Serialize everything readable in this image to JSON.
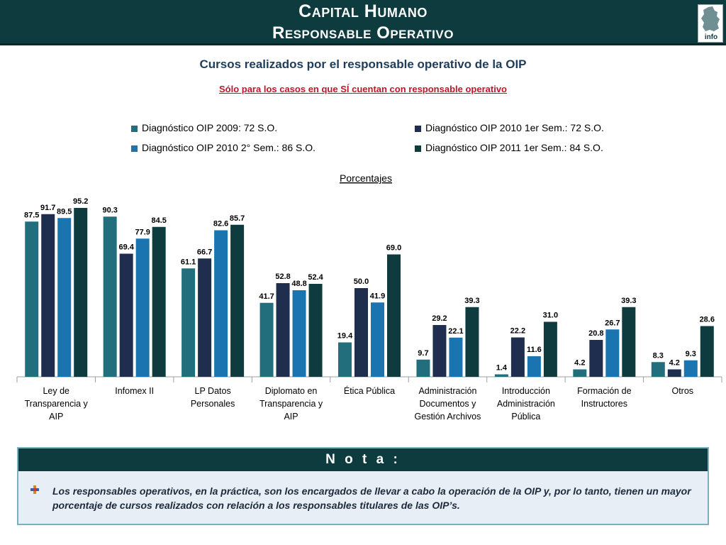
{
  "header": {
    "title": "Capital Humano",
    "subtitle": "Responsable Operativo",
    "logo_text": "info"
  },
  "chart_data": {
    "type": "bar",
    "title": "Cursos realizados por el responsable operativo de la OIP",
    "subtitle": "Sólo para los casos en que SÍ cuentan con responsable operativo",
    "ylabel": "Porcentajes",
    "ylim": [
      0,
      100
    ],
    "grid": false,
    "legend_position": "top",
    "categories": [
      "Ley de Transparencia y AIP",
      "Infomex II",
      "LP Datos Personales",
      "Diplomato en Transparencia y AIP",
      "Ética Pública",
      "Administración Documentos y Gestión Archivos",
      "Introducción Administración Pública",
      "Formación de Instructores",
      "Otros"
    ],
    "category_lines": [
      [
        "Ley de",
        "Transparencia y",
        "AIP"
      ],
      [
        "Infomex II"
      ],
      [
        "LP Datos",
        "Personales"
      ],
      [
        "Diplomato en",
        "Transparencia y",
        "AIP"
      ],
      [
        "Ética Pública"
      ],
      [
        "Administración",
        "Documentos y",
        "Gestión Archivos"
      ],
      [
        "Introducción",
        "Administración",
        "Pública"
      ],
      [
        "Formación de",
        "Instructores"
      ],
      [
        "Otros"
      ]
    ],
    "series": [
      {
        "name": "Diagnóstico OIP 2009: 72 S.O.",
        "color": "#236e7c",
        "values": [
          87.5,
          90.3,
          61.1,
          41.7,
          19.4,
          9.7,
          1.4,
          4.2,
          8.3
        ]
      },
      {
        "name": "Diagnóstico OIP 2010 1er Sem.: 72 S.O.",
        "color": "#1f2d4f",
        "values": [
          91.7,
          69.4,
          66.7,
          52.8,
          50.0,
          29.2,
          22.2,
          20.8,
          4.2
        ]
      },
      {
        "name": "Diagnóstico OIP 2010 2° Sem.: 86 S.O.",
        "color": "#1a74b0",
        "values": [
          89.5,
          77.9,
          82.6,
          48.8,
          41.9,
          22.1,
          11.6,
          26.7,
          9.3
        ]
      },
      {
        "name": "Diagnóstico OIP 2011 1er Sem.: 84 S.O.",
        "color": "#0d3b3e",
        "values": [
          95.2,
          84.5,
          85.7,
          52.4,
          69.0,
          39.3,
          31.0,
          39.3,
          28.6
        ]
      }
    ]
  },
  "nota": {
    "title": "N o t a :",
    "text": "Los responsables operativos, en la práctica, son los encargados de llevar a cabo la operación de la OIP y, por lo tanto, tienen un mayor porcentaje de cursos realizados con relación a los responsables titulares de las OIP’s."
  }
}
